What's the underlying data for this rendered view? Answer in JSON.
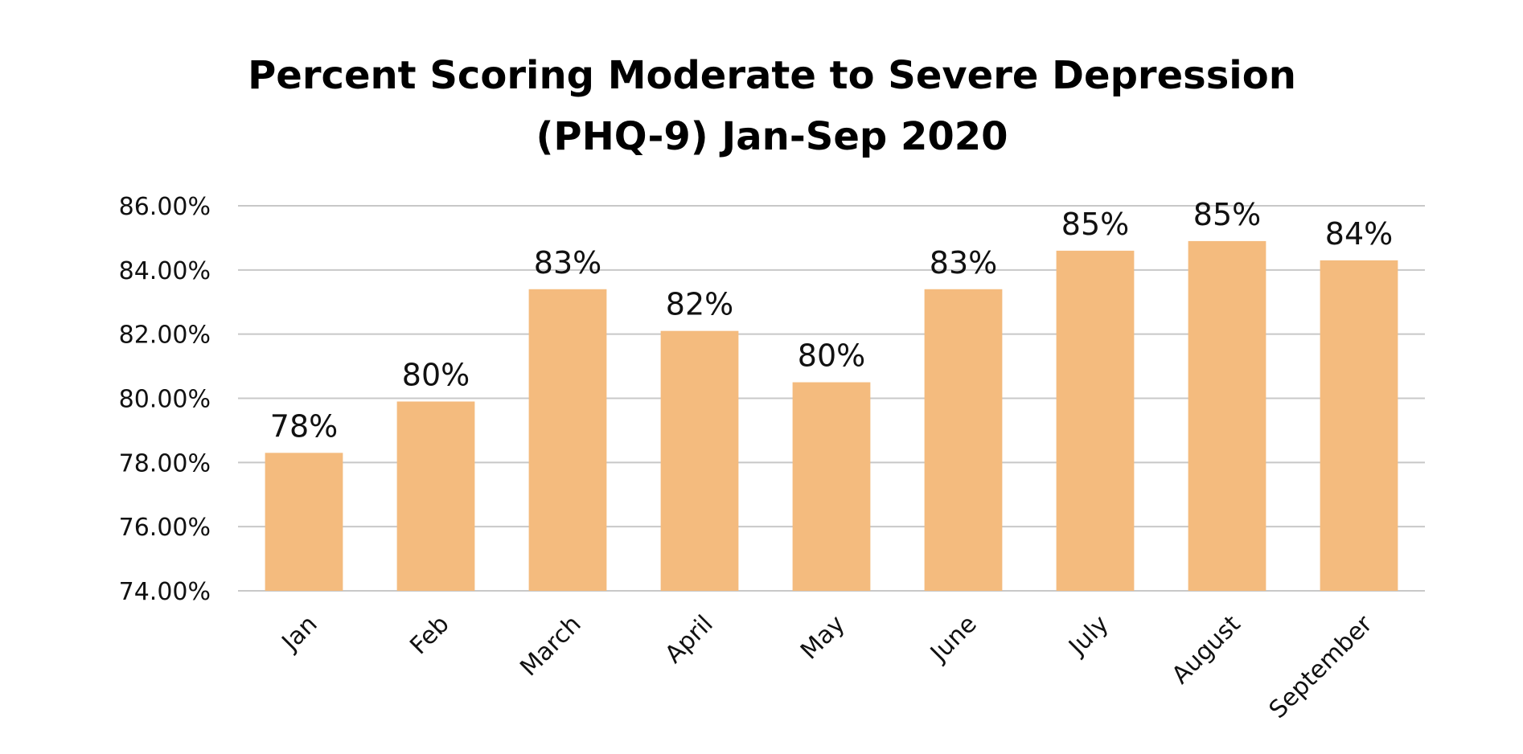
{
  "chart_data": {
    "type": "bar",
    "title": [
      "Percent Scoring Moderate to Severe Depression",
      "(PHQ-9) Jan-Sep 2020"
    ],
    "xlabel": "",
    "ylabel": "",
    "categories": [
      "Jan",
      "Feb",
      "March",
      "April",
      "May",
      "June",
      "July",
      "August",
      "September"
    ],
    "values": [
      78.3,
      79.9,
      83.4,
      82.1,
      80.5,
      83.4,
      84.6,
      84.9,
      84.3
    ],
    "data_labels": [
      "78%",
      "80%",
      "83%",
      "82%",
      "80%",
      "83%",
      "85%",
      "85%",
      "84%"
    ],
    "ylim": [
      74,
      86
    ],
    "yticks": [
      74,
      76,
      78,
      80,
      82,
      84,
      86
    ],
    "ytick_labels": [
      "74.00%",
      "76.00%",
      "78.00%",
      "80.00%",
      "82.00%",
      "84.00%",
      "86.00%"
    ],
    "grid": true,
    "legend": "none",
    "bar_color": "#F4BB7E"
  }
}
